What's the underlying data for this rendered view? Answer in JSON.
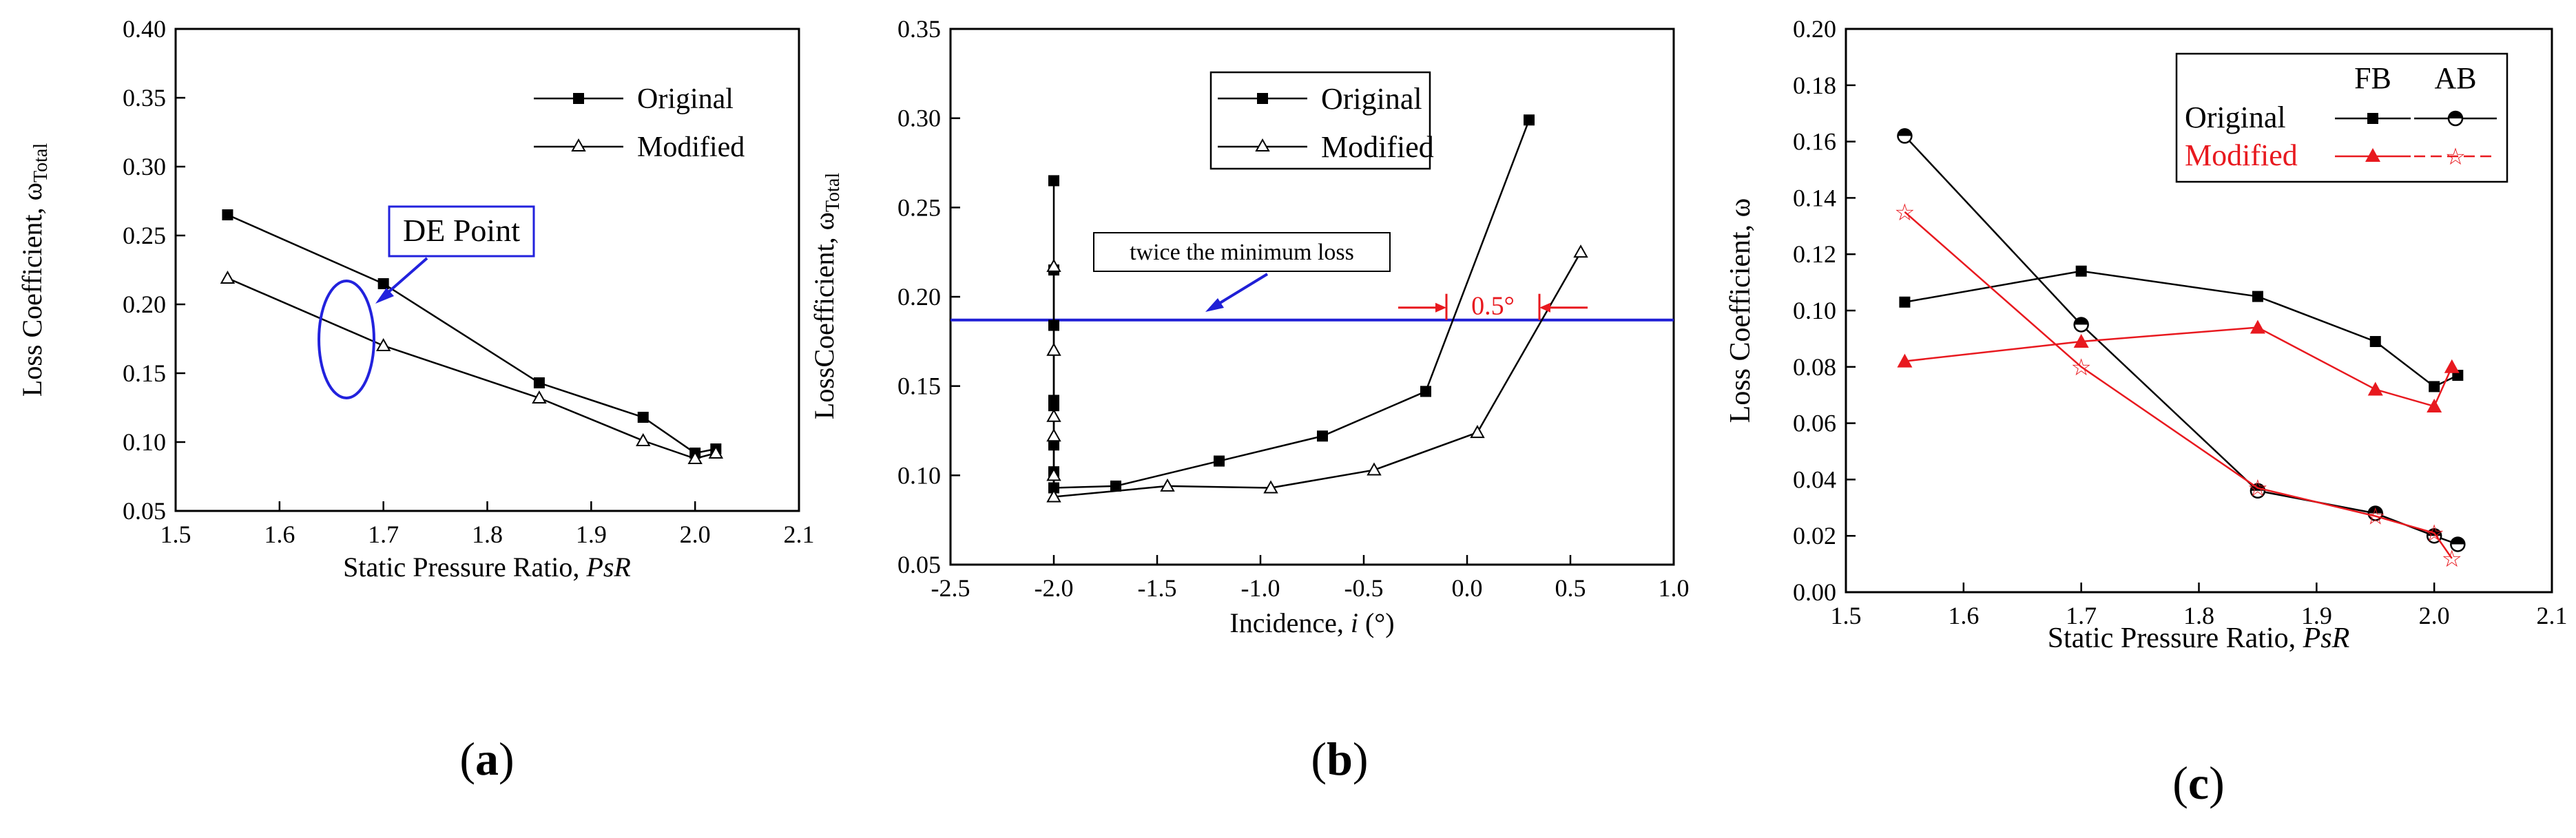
{
  "chart_data": [
    {
      "type": "line",
      "panel_label": "(a)",
      "xlabel": "Static Pressure Ratio, PsR",
      "ylabel": "Loss Coefficient, ωTotal",
      "xlim": [
        1.5,
        2.1
      ],
      "ylim": [
        0.05,
        0.4
      ],
      "xticks": [
        "1.5",
        "1.6",
        "1.7",
        "1.8",
        "1.9",
        "2.0",
        "2.1"
      ],
      "yticks": [
        "0.05",
        "0.10",
        "0.15",
        "0.20",
        "0.25",
        "0.30",
        "0.35",
        "0.40"
      ],
      "legend": [
        "Original",
        "Modified"
      ],
      "annotation": "DE Point",
      "annotation_xy": [
        1.7,
        0.193
      ],
      "series": [
        {
          "name": "Original",
          "marker": "square",
          "color": "#000000",
          "x": [
            1.55,
            1.7,
            1.85,
            1.95,
            2.0,
            2.02
          ],
          "y": [
            0.265,
            0.215,
            0.143,
            0.118,
            0.092,
            0.095
          ]
        },
        {
          "name": "Modified",
          "marker": "triangle-open",
          "color": "#000000",
          "x": [
            1.55,
            1.7,
            1.85,
            1.95,
            2.0,
            2.02
          ],
          "y": [
            0.219,
            0.17,
            0.132,
            0.101,
            0.088,
            0.092
          ]
        }
      ]
    },
    {
      "type": "line",
      "panel_label": "(b)",
      "xlabel": "Incidence, i (°)",
      "ylabel": "LossCoefficient, ωTotal",
      "xlim": [
        -2.5,
        1.0
      ],
      "ylim": [
        0.05,
        0.35
      ],
      "xticks": [
        "-2.5",
        "-2.0",
        "-1.5",
        "-1.0",
        "-0.5",
        "0.0",
        "0.5",
        "1.0"
      ],
      "yticks": [
        "0.05",
        "0.10",
        "0.15",
        "0.20",
        "0.25",
        "0.30",
        "0.35"
      ],
      "legend": [
        "Original",
        "Modified"
      ],
      "reference_line": {
        "y": 0.187,
        "label": "twice the minimum loss",
        "color": "#1f1fd6"
      },
      "range_annotation": {
        "label": "0.5°",
        "x_from": -0.1,
        "x_to": 0.35,
        "color": "#e8191f"
      },
      "series": [
        {
          "name": "Original",
          "marker": "square",
          "color": "#000000",
          "x": [
            -2.0,
            -2.0,
            -2.0,
            -2.0,
            -2.0,
            -2.0,
            -2.0,
            -2.0,
            -1.7,
            -1.2,
            -0.7,
            -0.2,
            0.3
          ],
          "y": [
            0.265,
            0.215,
            0.184,
            0.142,
            0.139,
            0.117,
            0.102,
            0.093,
            0.094,
            0.108,
            0.122,
            0.147,
            0.299
          ]
        },
        {
          "name": "Modified",
          "marker": "triangle-open",
          "color": "#000000",
          "x": [
            -2.0,
            -2.0,
            -2.0,
            -2.0,
            -2.0,
            -2.0,
            -1.45,
            -0.95,
            -0.45,
            0.05,
            0.55
          ],
          "y": [
            0.217,
            0.17,
            0.133,
            0.122,
            0.1,
            0.088,
            0.094,
            0.093,
            0.103,
            0.124,
            0.225
          ]
        }
      ]
    },
    {
      "type": "line",
      "panel_label": "(c)",
      "xlabel": "Static Pressure Ratio, PsR",
      "ylabel": "Loss Coefficient, ω",
      "xlim": [
        1.5,
        2.1
      ],
      "ylim": [
        0.0,
        0.2
      ],
      "xticks": [
        "1.5",
        "1.6",
        "1.7",
        "1.8",
        "1.9",
        "2.0",
        "2.1"
      ],
      "yticks": [
        "0.00",
        "0.02",
        "0.04",
        "0.06",
        "0.08",
        "0.10",
        "0.12",
        "0.14",
        "0.16",
        "0.18",
        "0.20"
      ],
      "legend_columns": [
        "FB",
        "AB"
      ],
      "legend_rows": [
        "Original",
        "Modified"
      ],
      "series": [
        {
          "name": "Original FB",
          "marker": "square",
          "color": "#000000",
          "x": [
            1.55,
            1.7,
            1.85,
            1.95,
            2.0,
            2.02
          ],
          "y": [
            0.103,
            0.114,
            0.105,
            0.089,
            0.073,
            0.077
          ]
        },
        {
          "name": "Original AB",
          "marker": "half-circle",
          "color": "#000000",
          "x": [
            1.55,
            1.7,
            1.85,
            1.95,
            2.0,
            2.02
          ],
          "y": [
            0.162,
            0.095,
            0.036,
            0.028,
            0.02,
            0.017
          ]
        },
        {
          "name": "Modified FB",
          "marker": "triangle",
          "color": "#e8191f",
          "x": [
            1.55,
            1.7,
            1.85,
            1.95,
            2.0,
            2.015
          ],
          "y": [
            0.082,
            0.089,
            0.094,
            0.072,
            0.066,
            0.08
          ]
        },
        {
          "name": "Modified AB",
          "marker": "star",
          "color": "#e8191f",
          "x": [
            1.55,
            1.7,
            1.85,
            1.95,
            2.0,
            2.015
          ],
          "y": [
            0.135,
            0.08,
            0.037,
            0.027,
            0.021,
            0.012
          ]
        }
      ]
    }
  ]
}
